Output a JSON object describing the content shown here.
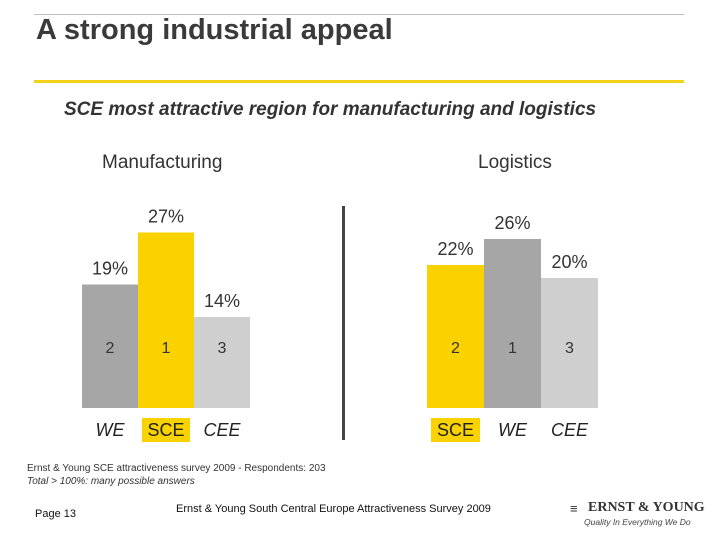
{
  "page": {
    "title": "A strong industrial appeal",
    "subtitle": "SCE most attractive region for manufacturing and logistics",
    "source_line": "Ernst & Young SCE attractiveness survey 2009 - Respondents: 203",
    "note_line": "Total > 100%: many possible answers",
    "page_number": "Page 13",
    "footer": "Ernst & Young South Central Europe Attractiveness Survey 2009",
    "logo": {
      "mark": "≡",
      "name": "ERNST & YOUNG",
      "tagline": "Quality In Everything We Do"
    }
  },
  "colors": {
    "sce": "#f9d200",
    "we": "#a6a6a6",
    "cee": "#cfcfcf",
    "divider": "#444444",
    "accent": "#f2d31a"
  },
  "chart_data": [
    {
      "type": "bar",
      "title": "Manufacturing",
      "categories": [
        "WE",
        "SCE",
        "CEE"
      ],
      "values": [
        19,
        27,
        14
      ],
      "ranks": [
        "2",
        "1",
        "3"
      ],
      "value_labels": [
        "19%",
        "27%",
        "14%"
      ],
      "highlight": "SCE",
      "ylim": [
        0,
        30
      ]
    },
    {
      "type": "bar",
      "title": "Logistics",
      "categories": [
        "SCE",
        "WE",
        "CEE"
      ],
      "values": [
        22,
        26,
        20
      ],
      "ranks": [
        "2",
        "1",
        "3"
      ],
      "value_labels": [
        "22%",
        "26%",
        "20%"
      ],
      "highlight": "SCE",
      "ylim": [
        0,
        30
      ]
    }
  ]
}
